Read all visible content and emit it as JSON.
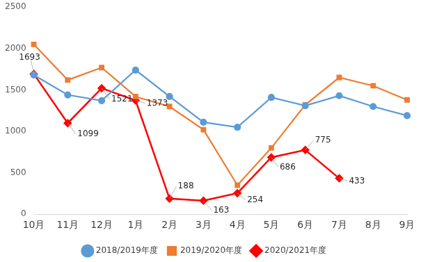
{
  "chart_data": {
    "type": "line",
    "categories": [
      "10月",
      "11月",
      "12月",
      "1月",
      "2月",
      "3月",
      "4月",
      "5月",
      "6月",
      "7月",
      "8月",
      "9月"
    ],
    "series": [
      {
        "name": "2018/2019年度",
        "color": "#5B9BD5",
        "marker": "circle",
        "values": [
          1680,
          1440,
          1370,
          1740,
          1420,
          1110,
          1050,
          1410,
          1310,
          1430,
          1300,
          1190
        ]
      },
      {
        "name": "2019/2020年度",
        "color": "#ED7D31",
        "marker": "square",
        "values": [
          2050,
          1620,
          1770,
          1420,
          1300,
          1020,
          350,
          800,
          1320,
          1650,
          1550,
          1380
        ]
      },
      {
        "name": "2020/2021年度",
        "color": "#FF0000",
        "marker": "diamond",
        "data_labels": true,
        "values": [
          1693,
          1099,
          1521,
          1373,
          188,
          163,
          254,
          686,
          775,
          433,
          null,
          null
        ]
      }
    ],
    "ylim": [
      0,
      2500
    ],
    "yticks": [
      0,
      500,
      1000,
      1500,
      2000,
      2500
    ],
    "grid": false,
    "legend": "bottom"
  }
}
